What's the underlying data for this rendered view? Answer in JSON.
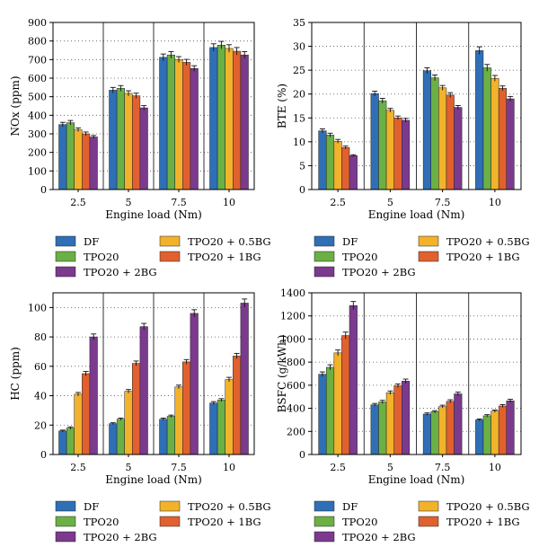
{
  "figure": {
    "colors": {
      "DF": "#2f6fb6",
      "TPO20": "#6bb044",
      "TPO20 + 0.5BG": "#f2b22b",
      "TPO20 + 1BG": "#e0612f",
      "TPO20 + 2BG": "#7b3a8e"
    }
  },
  "chart_data": [
    {
      "id": "nox",
      "type": "bar",
      "xlabel": "Engine load (Nm)",
      "ylabel": "NOx (ppm)",
      "ylim": [
        0,
        900
      ],
      "yticks": [
        0,
        100,
        200,
        300,
        400,
        500,
        600,
        700,
        800,
        900
      ],
      "grid": "horizontal dotted",
      "categories": [
        "2.5",
        "5",
        "7.5",
        "10"
      ],
      "series": [
        {
          "name": "DF",
          "values": [
            350,
            535,
            712,
            765
          ],
          "errors": [
            12,
            15,
            18,
            20
          ]
        },
        {
          "name": "TPO20",
          "values": [
            360,
            545,
            725,
            778
          ],
          "errors": [
            12,
            15,
            18,
            20
          ]
        },
        {
          "name": "TPO20 + 0.5BG",
          "values": [
            322,
            518,
            700,
            760
          ],
          "errors": [
            10,
            14,
            16,
            20
          ]
        },
        {
          "name": "TPO20 + 1BG",
          "values": [
            300,
            505,
            685,
            745
          ],
          "errors": [
            10,
            14,
            16,
            20
          ]
        },
        {
          "name": "TPO20 + 2BG",
          "values": [
            283,
            440,
            652,
            725
          ],
          "errors": [
            8,
            12,
            15,
            18
          ]
        }
      ],
      "legend": {
        "placement": "below",
        "order": [
          "DF",
          "TPO20 + 0.5BG",
          "TPO20",
          "TPO20 + 1BG",
          "TPO20 + 2BG"
        ]
      }
    },
    {
      "id": "bte",
      "type": "bar",
      "xlabel": "Engine load (Nm)",
      "ylabel": "BTE (%)",
      "ylim": [
        0,
        35
      ],
      "yticks": [
        0,
        5,
        10,
        15,
        20,
        25,
        30,
        35
      ],
      "grid": "horizontal dotted",
      "categories": [
        "2.5",
        "5",
        "7.5",
        "10"
      ],
      "series": [
        {
          "name": "DF",
          "values": [
            12.3,
            20.1,
            24.9,
            29.1
          ],
          "errors": [
            0.4,
            0.5,
            0.6,
            0.8
          ]
        },
        {
          "name": "TPO20",
          "values": [
            11.4,
            18.6,
            23.4,
            25.5
          ],
          "errors": [
            0.4,
            0.5,
            0.6,
            0.7
          ]
        },
        {
          "name": "TPO20 + 0.5BG",
          "values": [
            10.1,
            16.6,
            21.3,
            23.3
          ],
          "errors": [
            0.4,
            0.4,
            0.5,
            0.6
          ]
        },
        {
          "name": "TPO20 + 1BG",
          "values": [
            8.8,
            15.0,
            19.8,
            21.2
          ],
          "errors": [
            0.3,
            0.4,
            0.5,
            0.5
          ]
        },
        {
          "name": "TPO20 + 2BG",
          "values": [
            7.1,
            14.5,
            17.2,
            19.0
          ],
          "errors": [
            0.2,
            0.4,
            0.4,
            0.5
          ]
        }
      ],
      "legend": {
        "placement": "below",
        "order": [
          "DF",
          "TPO20 + 0.5BG",
          "TPO20",
          "TPO20 + 1BG",
          "TPO20 + 2BG"
        ]
      }
    },
    {
      "id": "hc",
      "type": "bar",
      "xlabel": "Engine load (Nm)",
      "ylabel": "HC (ppm)",
      "ylim": [
        0,
        110
      ],
      "yticks": [
        0,
        20,
        40,
        60,
        80,
        100
      ],
      "grid": "horizontal dotted",
      "categories": [
        "2.5",
        "5",
        "7.5",
        "10"
      ],
      "series": [
        {
          "name": "DF",
          "values": [
            16,
            21,
            24,
            35
          ],
          "errors": [
            0.6,
            0.6,
            0.8,
            1.0
          ]
        },
        {
          "name": "TPO20",
          "values": [
            18,
            24,
            26,
            37
          ],
          "errors": [
            0.8,
            0.8,
            0.8,
            1.0
          ]
        },
        {
          "name": "TPO20 + 0.5BG",
          "values": [
            41,
            43,
            46,
            51
          ],
          "errors": [
            1.2,
            1.2,
            1.2,
            1.5
          ]
        },
        {
          "name": "TPO20 + 1BG",
          "values": [
            55,
            62,
            63,
            67
          ],
          "errors": [
            1.5,
            1.6,
            1.6,
            1.8
          ]
        },
        {
          "name": "TPO20 + 2BG",
          "values": [
            80,
            87,
            96,
            103
          ],
          "errors": [
            2.0,
            2.2,
            2.5,
            2.8
          ]
        }
      ],
      "legend": {
        "placement": "below",
        "order": [
          "DF",
          "TPO20 + 0.5BG",
          "TPO20",
          "TPO20 + 1BG",
          "TPO20 + 2BG"
        ]
      }
    },
    {
      "id": "bsfc",
      "type": "bar",
      "xlabel": "Engine load (Nm)",
      "ylabel": "BSFC (g/kWh)",
      "ylim": [
        0,
        1400
      ],
      "yticks": [
        0,
        200,
        400,
        600,
        800,
        1000,
        1200,
        1400
      ],
      "grid": "horizontal dotted",
      "categories": [
        "2.5",
        "5",
        "7.5",
        "10"
      ],
      "series": [
        {
          "name": "DF",
          "values": [
            695,
            430,
            350,
            300
          ],
          "errors": [
            20,
            12,
            10,
            8
          ]
        },
        {
          "name": "TPO20",
          "values": [
            755,
            455,
            370,
            335
          ],
          "errors": [
            22,
            14,
            10,
            10
          ]
        },
        {
          "name": "TPO20 + 0.5BG",
          "values": [
            880,
            535,
            415,
            375
          ],
          "errors": [
            25,
            15,
            12,
            10
          ]
        },
        {
          "name": "TPO20 + 1BG",
          "values": [
            1030,
            595,
            460,
            420
          ],
          "errors": [
            30,
            16,
            14,
            12
          ]
        },
        {
          "name": "TPO20 + 2BG",
          "values": [
            1290,
            635,
            525,
            465
          ],
          "errors": [
            35,
            18,
            15,
            13
          ]
        }
      ],
      "legend": {
        "placement": "below",
        "order": [
          "DF",
          "TPO20 + 0.5BG",
          "TPO20",
          "TPO20 + 1BG",
          "TPO20 + 2BG"
        ]
      }
    }
  ]
}
